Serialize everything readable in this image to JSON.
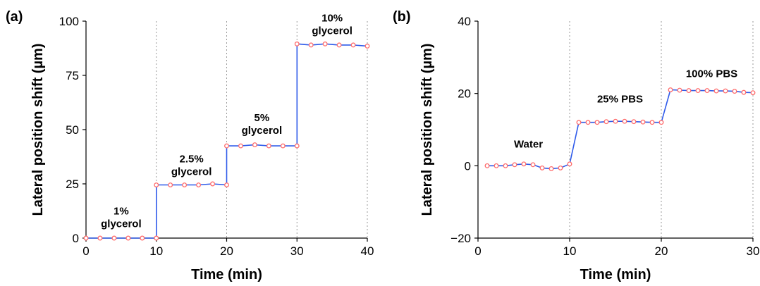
{
  "chart_data": [
    {
      "panel_label": "(a)",
      "type": "line",
      "xlabel": "Time (min)",
      "ylabel": "Lateral position shift (µm)",
      "xlim": [
        0,
        40
      ],
      "ylim": [
        0,
        100
      ],
      "xticks": [
        0,
        10,
        20,
        30,
        40
      ],
      "yticks": [
        0,
        25,
        50,
        75,
        100
      ],
      "vlines": [
        10,
        20,
        30
      ],
      "line_color": "#2f5bea",
      "marker_color": "#ff6b6b",
      "series": [
        {
          "x": [
            0,
            2,
            4,
            6,
            8,
            10,
            10,
            12,
            14,
            16,
            18,
            20,
            20,
            22,
            24,
            26,
            28,
            30,
            30,
            32,
            34,
            36,
            38,
            40
          ],
          "y": [
            0,
            0,
            0,
            0,
            0,
            0,
            24.5,
            24.5,
            24.5,
            24.5,
            25,
            24.5,
            42.5,
            42.5,
            43,
            42.5,
            42.5,
            42.5,
            89.5,
            89,
            89.5,
            89,
            89,
            88.5
          ]
        }
      ],
      "annotations": [
        {
          "lines": [
            "1%",
            "glycerol"
          ],
          "x": 5,
          "y": 5
        },
        {
          "lines": [
            "2.5%",
            "glycerol"
          ],
          "x": 15,
          "y": 29
        },
        {
          "lines": [
            "5%",
            "glycerol"
          ],
          "x": 25,
          "y": 48
        },
        {
          "lines": [
            "10%",
            "glycerol"
          ],
          "x": 35,
          "y": 94
        }
      ]
    },
    {
      "panel_label": "(b)",
      "type": "line",
      "xlabel": "Time (min)",
      "ylabel": "Lateral position shift (µm)",
      "xlim": [
        0,
        30
      ],
      "ylim": [
        -20,
        40
      ],
      "xticks": [
        0,
        10,
        20,
        30
      ],
      "yticks": [
        -20,
        0,
        20,
        40
      ],
      "ytick_labels": [
        "−20",
        "0",
        "20",
        "40"
      ],
      "vlines": [
        10,
        20
      ],
      "line_color": "#2f5bea",
      "marker_color": "#ff6b6b",
      "series": [
        {
          "x": [
            1,
            2,
            3,
            4,
            5,
            6,
            7,
            8,
            9,
            10,
            11,
            12,
            13,
            14,
            15,
            16,
            17,
            18,
            19,
            20,
            21,
            22,
            23,
            24,
            25,
            26,
            27,
            28,
            29,
            30
          ],
          "y": [
            0,
            0,
            0,
            0.3,
            0.5,
            0.3,
            -0.6,
            -0.8,
            -0.6,
            0.5,
            12,
            12,
            12,
            12.2,
            12.3,
            12.3,
            12.2,
            12.1,
            12,
            12,
            21,
            20.9,
            20.8,
            20.8,
            20.8,
            20.7,
            20.7,
            20.6,
            20.3,
            20.2
          ]
        }
      ],
      "annotations": [
        {
          "lines": [
            "Water"
          ],
          "x": 5.5,
          "y": 5
        },
        {
          "lines": [
            "25% PBS"
          ],
          "x": 15.5,
          "y": 17.5
        },
        {
          "lines": [
            "100% PBS"
          ],
          "x": 25.5,
          "y": 24.5
        }
      ]
    }
  ]
}
